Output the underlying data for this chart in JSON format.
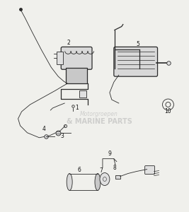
{
  "background_color": "#f0f0ec",
  "line_color": "#2a2a2a",
  "watermark_color": "#b8b8b8",
  "watermark_text1": "Motorgroepen",
  "watermark_text2": "& MARINE PARTS",
  "label_fontsize": 5.5,
  "label_color": "#111111",
  "fig_width": 2.67,
  "fig_height": 3.0,
  "dpi": 100
}
